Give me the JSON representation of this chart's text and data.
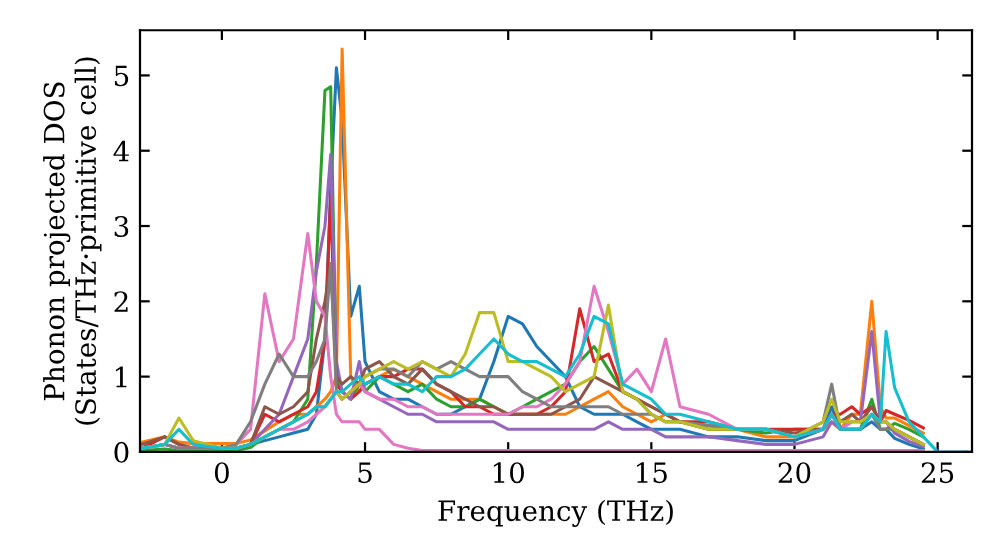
{
  "chart_data": {
    "type": "line",
    "xlabel": "Frequency (THz)",
    "ylabel": "Phonon projected DOS\n(States/THz·primitive cell)",
    "xlim": [
      -2.86,
      26.2
    ],
    "ylim": [
      0,
      5.6
    ],
    "xticks": [
      0,
      5,
      10,
      15,
      20,
      25
    ],
    "yticks": [
      0,
      1,
      2,
      3,
      4,
      5
    ],
    "grid": false,
    "legend": false,
    "marker": "none",
    "line_style": "solid",
    "x": [
      -2.8,
      -2,
      -1.5,
      -1,
      0,
      0.5,
      1,
      1.5,
      2,
      2.5,
      3,
      3.3,
      3.6,
      3.8,
      4,
      4.2,
      4.5,
      4.8,
      5,
      5.5,
      6,
      6.5,
      7,
      7.5,
      8,
      8.5,
      9,
      9.5,
      10,
      10.5,
      11,
      11.5,
      12,
      12.5,
      13,
      13.5,
      14,
      14.5,
      15,
      15.5,
      16,
      17,
      18,
      19,
      20,
      21,
      21.3,
      21.6,
      22,
      22.3,
      22.7,
      23,
      23.2,
      23.5,
      24,
      24.5,
      25,
      26
    ],
    "series": [
      {
        "color": "#1f77b4",
        "values": [
          0.05,
          0.1,
          0.05,
          0.05,
          0.05,
          0.05,
          0.1,
          0.15,
          0.2,
          0.25,
          0.3,
          0.5,
          1.5,
          3.5,
          5.1,
          4.4,
          1.8,
          2.2,
          1.2,
          0.8,
          0.7,
          0.7,
          0.6,
          0.5,
          0.5,
          0.6,
          0.7,
          1.2,
          1.8,
          1.7,
          1.4,
          1.2,
          1.0,
          0.6,
          0.5,
          0.5,
          0.5,
          0.4,
          0.3,
          0.3,
          0.3,
          0.2,
          0.2,
          0.15,
          0.15,
          0.3,
          0.6,
          0.3,
          0.3,
          0.3,
          0.4,
          0.3,
          0.3,
          0.18,
          0.1,
          0.04,
          null,
          null
        ]
      },
      {
        "color": "#ff7f0e",
        "values": [
          0.13,
          0.2,
          0.13,
          0.11,
          0.11,
          0.11,
          0.16,
          0.28,
          0.4,
          0.5,
          0.5,
          0.6,
          0.7,
          0.8,
          1.0,
          5.35,
          1.0,
          0.8,
          0.9,
          1.0,
          1.1,
          1.0,
          0.9,
          0.8,
          0.7,
          0.7,
          0.7,
          0.6,
          0.5,
          0.5,
          0.5,
          0.5,
          0.5,
          0.6,
          0.7,
          0.8,
          0.6,
          0.5,
          0.4,
          0.5,
          0.4,
          0.3,
          0.3,
          0.2,
          0.2,
          0.3,
          0.4,
          0.3,
          0.5,
          0.5,
          2.0,
          0.6,
          0.45,
          0.45,
          0.35,
          0.25,
          null,
          null
        ]
      },
      {
        "color": "#2ca02c",
        "values": [
          0.02,
          0.04,
          0.02,
          0.02,
          0.02,
          0.02,
          0.06,
          0.2,
          0.3,
          0.4,
          0.7,
          2.5,
          4.8,
          4.85,
          1.0,
          0.8,
          0.7,
          0.9,
          0.8,
          1.0,
          0.9,
          0.8,
          0.9,
          0.7,
          0.6,
          0.6,
          0.7,
          0.6,
          0.5,
          0.6,
          0.7,
          0.8,
          0.9,
          1.2,
          1.4,
          1.1,
          0.8,
          0.7,
          0.5,
          0.4,
          0.4,
          0.3,
          0.3,
          0.25,
          0.3,
          0.3,
          0.5,
          0.3,
          0.3,
          0.3,
          0.7,
          0.3,
          0.3,
          0.38,
          0.3,
          0.2,
          null,
          null
        ]
      },
      {
        "color": "#d62728",
        "values": [
          0.05,
          0.2,
          0.1,
          0.05,
          0.05,
          0.05,
          0.1,
          0.5,
          0.4,
          0.5,
          0.6,
          0.8,
          1.5,
          3.4,
          0.9,
          0.8,
          0.7,
          0.8,
          0.9,
          1.0,
          1.0,
          1.1,
          1.1,
          0.9,
          0.8,
          0.6,
          0.6,
          0.5,
          0.5,
          0.5,
          0.5,
          0.6,
          0.8,
          1.9,
          1.2,
          1.3,
          0.8,
          0.7,
          0.6,
          0.5,
          0.4,
          0.4,
          0.3,
          0.3,
          0.3,
          0.3,
          0.5,
          0.5,
          0.6,
          0.5,
          0.6,
          0.4,
          0.55,
          0.5,
          0.42,
          0.32,
          null,
          null
        ]
      },
      {
        "color": "#9467bd",
        "values": [
          0.05,
          0.1,
          0.05,
          0.05,
          0.05,
          0.05,
          0.1,
          0.3,
          0.5,
          1.0,
          1.5,
          2.4,
          3.0,
          3.95,
          1.2,
          0.8,
          0.7,
          1.2,
          0.8,
          0.7,
          0.6,
          0.5,
          0.5,
          0.4,
          0.4,
          0.4,
          0.4,
          0.4,
          0.3,
          0.3,
          0.3,
          0.3,
          0.3,
          0.3,
          0.3,
          0.4,
          0.3,
          0.3,
          0.3,
          0.2,
          0.2,
          0.2,
          0.15,
          0.1,
          0.1,
          0.2,
          0.4,
          0.3,
          0.4,
          0.4,
          1.6,
          0.4,
          0.4,
          0.25,
          0.14,
          0.07,
          null,
          null
        ]
      },
      {
        "color": "#8c564b",
        "values": [
          0.1,
          0.2,
          0.1,
          0.05,
          0.05,
          0.05,
          0.1,
          0.6,
          0.5,
          0.6,
          0.8,
          1.5,
          2.0,
          2.5,
          1.0,
          0.9,
          1.0,
          0.9,
          1.1,
          1.2,
          1.0,
          0.9,
          1.1,
          0.9,
          0.8,
          0.7,
          0.6,
          0.6,
          0.5,
          0.5,
          0.5,
          0.5,
          0.6,
          0.7,
          1.0,
          0.9,
          0.8,
          0.7,
          0.6,
          0.5,
          0.4,
          0.35,
          0.3,
          0.3,
          0.25,
          0.3,
          0.5,
          0.4,
          0.5,
          0.4,
          0.6,
          0.4,
          0.4,
          0.3,
          0.2,
          0.1,
          null,
          null
        ]
      },
      {
        "color": "#e377c2",
        "values": [
          0.05,
          0.1,
          0.05,
          0.05,
          0.05,
          0.1,
          0.3,
          2.1,
          1.2,
          1.5,
          2.9,
          2.0,
          1.8,
          1.0,
          0.5,
          0.4,
          0.4,
          0.4,
          0.3,
          0.3,
          0.1,
          0.05,
          0.02,
          0.02,
          0.02,
          0.02,
          0.02,
          0.02,
          0.02,
          0.02,
          0.02,
          0.02,
          0.02,
          0.02,
          0.02,
          0.02,
          0.02,
          0.02,
          0.02,
          0.02,
          0.02,
          0.02,
          0.02,
          0.02,
          0.02,
          0.02,
          0.02,
          0.02,
          0.02,
          0.02,
          0.02,
          0.02,
          0.02,
          0.02,
          0.02,
          0.02,
          null,
          null
        ]
      },
      {
        "color": "#e377c2",
        "values": [
          0.05,
          0.1,
          0.05,
          0.05,
          0.05,
          0.05,
          0.1,
          0.2,
          0.3,
          0.3,
          0.4,
          0.5,
          0.6,
          0.7,
          0.8,
          0.7,
          0.8,
          0.9,
          0.8,
          0.7,
          0.7,
          0.6,
          0.6,
          0.5,
          0.5,
          0.5,
          0.5,
          0.5,
          0.5,
          0.6,
          0.6,
          0.7,
          0.9,
          1.2,
          2.2,
          1.6,
          0.9,
          1.1,
          0.8,
          1.5,
          0.6,
          0.5,
          0.3,
          0.3,
          0.2,
          0.3,
          0.5,
          0.3,
          0.4,
          0.4,
          0.5,
          0.4,
          0.4,
          0.3,
          0.2,
          0.1,
          null,
          null
        ]
      },
      {
        "color": "#7f7f7f",
        "values": [
          0.05,
          0.1,
          0.05,
          0.05,
          0.05,
          0.1,
          0.4,
          0.9,
          1.3,
          1.0,
          1.0,
          1.2,
          1.5,
          2.5,
          0.8,
          0.7,
          0.8,
          0.9,
          1.0,
          1.1,
          1.1,
          1.0,
          1.2,
          1.1,
          1.2,
          1.1,
          1.0,
          1.0,
          1.0,
          0.8,
          0.7,
          0.6,
          0.6,
          0.6,
          0.6,
          0.6,
          0.5,
          0.5,
          0.5,
          0.4,
          0.4,
          0.35,
          0.3,
          0.3,
          0.2,
          0.4,
          0.9,
          0.3,
          0.3,
          0.3,
          0.5,
          0.3,
          0.3,
          0.3,
          0.2,
          0.1,
          null,
          null
        ]
      },
      {
        "color": "#bcbd22",
        "values": [
          0.05,
          0.1,
          0.45,
          0.15,
          0.05,
          0.05,
          0.1,
          0.2,
          0.3,
          0.4,
          0.5,
          0.6,
          0.6,
          0.7,
          0.8,
          0.7,
          0.8,
          0.9,
          1.0,
          1.1,
          1.2,
          1.1,
          1.2,
          1.1,
          1.0,
          1.3,
          1.85,
          1.85,
          1.2,
          1.2,
          1.1,
          1.0,
          0.8,
          0.9,
          1.0,
          1.95,
          0.8,
          0.7,
          0.5,
          0.4,
          0.4,
          0.3,
          0.3,
          0.3,
          0.2,
          0.4,
          0.7,
          0.4,
          0.4,
          0.4,
          0.5,
          0.4,
          0.4,
          0.3,
          0.2,
          0.1,
          null,
          null
        ]
      },
      {
        "color": "#17becf",
        "values": [
          0.05,
          0.1,
          0.3,
          0.1,
          0.05,
          0.05,
          0.1,
          0.2,
          0.3,
          0.4,
          0.5,
          0.6,
          0.6,
          0.7,
          0.8,
          0.8,
          0.9,
          1.0,
          0.9,
          1.0,
          0.9,
          0.9,
          0.8,
          1.0,
          1.0,
          1.1,
          1.3,
          1.5,
          1.3,
          1.2,
          1.2,
          1.1,
          1.0,
          1.3,
          1.8,
          1.7,
          0.9,
          0.8,
          0.7,
          0.5,
          0.5,
          0.4,
          0.3,
          0.3,
          0.2,
          0.3,
          0.5,
          0.3,
          0.3,
          0.3,
          0.5,
          0.4,
          1.6,
          0.85,
          0.4,
          0.2,
          0.0,
          0.0
        ]
      }
    ]
  }
}
